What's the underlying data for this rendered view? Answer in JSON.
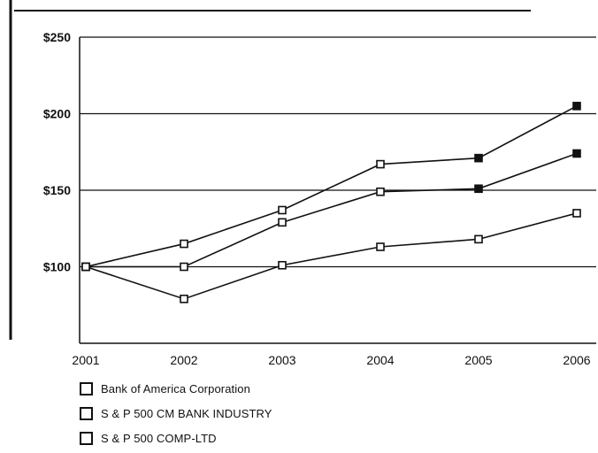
{
  "chart_data": {
    "type": "line",
    "x": [
      "2001",
      "2002",
      "2003",
      "2004",
      "2005",
      "2006"
    ],
    "y_tick_labels": [
      "$250",
      "$200",
      "$150",
      "$100"
    ],
    "y_ticks": [
      250,
      200,
      150,
      100
    ],
    "ylim": [
      50,
      250
    ],
    "grid": true,
    "legend_placement": "bottom-left",
    "series": [
      {
        "name": "Bank of America Corporation",
        "values": [
          100,
          115,
          137,
          167,
          171,
          205
        ]
      },
      {
        "name": "S & P 500 CM BANK INDUSTRY",
        "values": [
          100,
          100,
          129,
          149,
          151,
          174
        ]
      },
      {
        "name": "S & P 500 COMP-LTD",
        "values": [
          100,
          79,
          101,
          113,
          118,
          135
        ]
      }
    ]
  }
}
